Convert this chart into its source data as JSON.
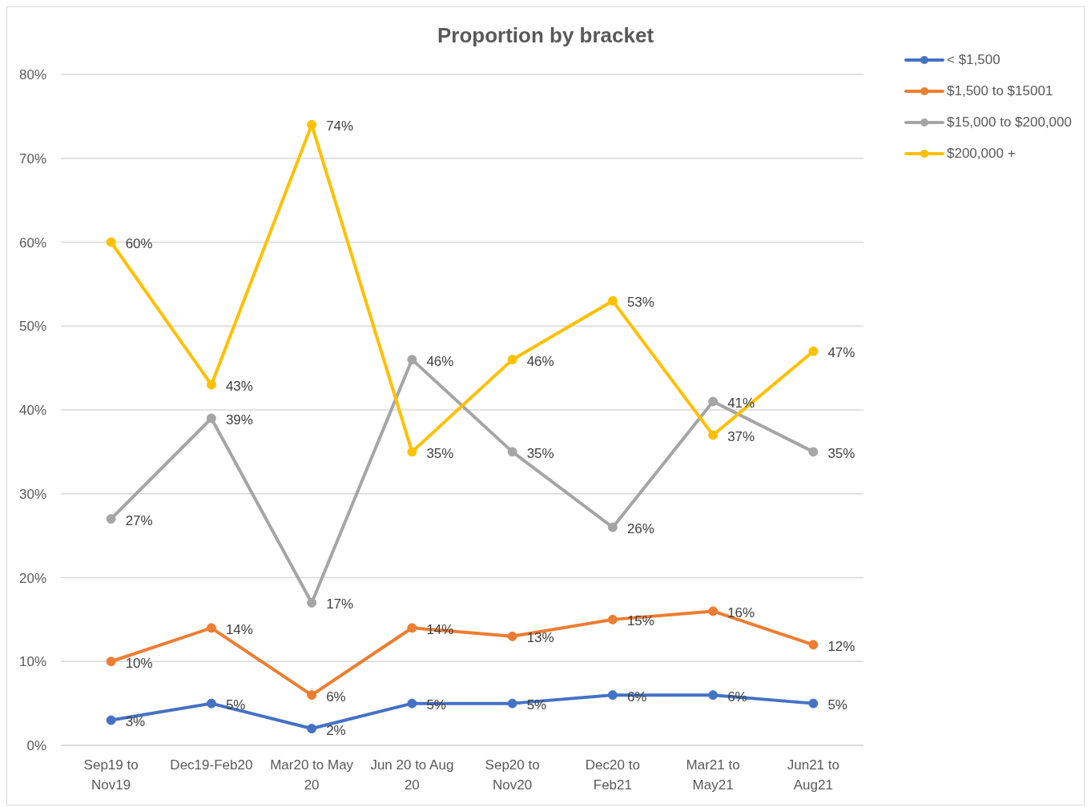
{
  "chart_data": {
    "type": "line",
    "title": "Proportion by bracket",
    "categories": [
      "Sep19 to Nov19",
      "Dec19-Feb20",
      "Mar20 to May 20",
      "Jun 20 to Aug 20",
      "Sep20 to Nov20",
      "Dec20 to Feb21",
      "Mar21 to May21",
      "Jun21 to Aug21"
    ],
    "series": [
      {
        "name": "< $1,500",
        "color": "#4472c4",
        "values": [
          3,
          5,
          2,
          5,
          5,
          6,
          6,
          5
        ],
        "value_labels": [
          "3%",
          "5%",
          "2%",
          "5%",
          "5%",
          "6%",
          "6%",
          "5%"
        ]
      },
      {
        "name": "$1,500 to $15001",
        "color": "#ed7d31",
        "values": [
          10,
          14,
          6,
          14,
          13,
          15,
          16,
          12
        ],
        "value_labels": [
          "10%",
          "14%",
          "6%",
          "14%",
          "13%",
          "15%",
          "16%",
          "12%"
        ]
      },
      {
        "name": "$15,000 to $200,000",
        "color": "#a5a5a5",
        "values": [
          27,
          39,
          17,
          46,
          35,
          26,
          41,
          35
        ],
        "value_labels": [
          "27%",
          "39%",
          "17%",
          "46%",
          "35%",
          "26%",
          "41%",
          "35%"
        ]
      },
      {
        "name": "$200,000 +",
        "color": "#ffc000",
        "values": [
          60,
          43,
          74,
          35,
          46,
          53,
          37,
          47
        ],
        "value_labels": [
          "60%",
          "43%",
          "74%",
          "35%",
          "46%",
          "53%",
          "37%",
          "47%"
        ]
      }
    ],
    "ylim": [
      0,
      80
    ],
    "yticks": [
      {
        "value": 0,
        "label": "0%"
      },
      {
        "value": 10,
        "label": "10%"
      },
      {
        "value": 20,
        "label": "20%"
      },
      {
        "value": 30,
        "label": "30%"
      },
      {
        "value": 40,
        "label": "40%"
      },
      {
        "value": 50,
        "label": "50%"
      },
      {
        "value": 60,
        "label": "60%"
      },
      {
        "value": 70,
        "label": "70%"
      },
      {
        "value": 80,
        "label": "80%"
      }
    ],
    "grid": "y",
    "legend": "top right",
    "marker": "circle"
  }
}
